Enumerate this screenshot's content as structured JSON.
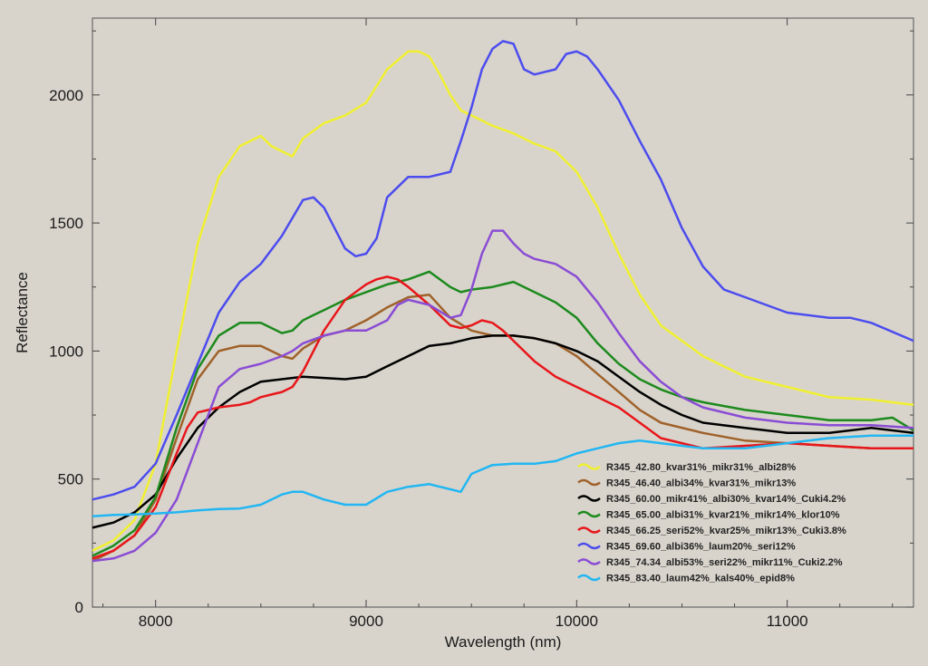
{
  "chart_data": {
    "type": "line",
    "title": "",
    "xlabel": "Wavelength (nm)",
    "ylabel": "Reflectance",
    "xlim": [
      7700,
      11600
    ],
    "ylim": [
      0,
      2300
    ],
    "xticks": [
      8000,
      9000,
      10000,
      11000
    ],
    "xtick_labels": [
      "8000",
      "9000",
      "10000",
      "11000"
    ],
    "yticks": [
      0,
      500,
      1000,
      1500,
      2000
    ],
    "ytick_labels": [
      "0",
      "500",
      "1000",
      "1500",
      "2000"
    ],
    "grid": false,
    "legend_position": "bottom-right",
    "background": "#d8d4cc",
    "series": [
      {
        "name": "R345_42.80_kvar31%_mikr31%_albi28%",
        "color": "#f0f030",
        "x": [
          7700,
          7800,
          7900,
          8000,
          8100,
          8200,
          8300,
          8400,
          8500,
          8550,
          8600,
          8650,
          8700,
          8800,
          8900,
          9000,
          9100,
          9200,
          9250,
          9300,
          9350,
          9400,
          9450,
          9500,
          9600,
          9700,
          9800,
          9900,
          10000,
          10100,
          10200,
          10300,
          10400,
          10600,
          10800,
          11000,
          11200,
          11400,
          11600
        ],
        "y": [
          220,
          260,
          340,
          560,
          1000,
          1420,
          1680,
          1800,
          1840,
          1800,
          1780,
          1760,
          1830,
          1890,
          1920,
          1970,
          2100,
          2170,
          2170,
          2150,
          2080,
          2000,
          1940,
          1920,
          1880,
          1850,
          1810,
          1780,
          1700,
          1560,
          1380,
          1220,
          1100,
          980,
          900,
          860,
          820,
          810,
          790
        ]
      },
      {
        "name": "R345_46.40_albi34%_kvar31%_mikr13%",
        "color": "#a0622a",
        "x": [
          7700,
          7800,
          7900,
          8000,
          8100,
          8200,
          8300,
          8400,
          8500,
          8600,
          8650,
          8700,
          8800,
          8900,
          9000,
          9100,
          9200,
          9300,
          9400,
          9500,
          9600,
          9700,
          9800,
          9900,
          10000,
          10100,
          10200,
          10300,
          10400,
          10600,
          10800,
          11000,
          11200,
          11400,
          11600
        ],
        "y": [
          180,
          220,
          280,
          420,
          660,
          890,
          1000,
          1020,
          1020,
          980,
          970,
          1010,
          1060,
          1080,
          1120,
          1170,
          1210,
          1220,
          1130,
          1080,
          1060,
          1060,
          1050,
          1030,
          980,
          910,
          840,
          770,
          720,
          680,
          650,
          640,
          630,
          620,
          620
        ]
      },
      {
        "name": "R345_60.00_mikr41%_albi30%_kvar14%_Cuki4.2%",
        "color": "#000000",
        "x": [
          7700,
          7800,
          7900,
          8000,
          8100,
          8200,
          8300,
          8400,
          8500,
          8600,
          8700,
          8800,
          8900,
          9000,
          9100,
          9200,
          9300,
          9400,
          9500,
          9600,
          9700,
          9800,
          9900,
          10000,
          10100,
          10200,
          10300,
          10400,
          10500,
          10600,
          10800,
          11000,
          11200,
          11400,
          11600
        ],
        "y": [
          310,
          330,
          370,
          440,
          580,
          700,
          780,
          840,
          880,
          890,
          900,
          895,
          890,
          900,
          940,
          980,
          1020,
          1030,
          1050,
          1060,
          1060,
          1050,
          1030,
          1000,
          960,
          900,
          840,
          790,
          750,
          720,
          700,
          680,
          680,
          700,
          680
        ]
      },
      {
        "name": "R345_65.00_albi31%_kvar21%_mikr14%_klor10%",
        "color": "#1d8a1d",
        "x": [
          7700,
          7800,
          7900,
          8000,
          8100,
          8200,
          8300,
          8400,
          8500,
          8600,
          8650,
          8700,
          8750,
          8800,
          8900,
          9000,
          9100,
          9200,
          9300,
          9350,
          9400,
          9450,
          9500,
          9600,
          9650,
          9700,
          9750,
          9800,
          9900,
          10000,
          10100,
          10200,
          10300,
          10400,
          10500,
          10600,
          10800,
          11000,
          11200,
          11400,
          11500,
          11600
        ],
        "y": [
          200,
          240,
          300,
          430,
          700,
          930,
          1060,
          1110,
          1110,
          1070,
          1080,
          1120,
          1140,
          1160,
          1200,
          1230,
          1260,
          1280,
          1310,
          1280,
          1250,
          1230,
          1240,
          1250,
          1260,
          1270,
          1250,
          1230,
          1190,
          1130,
          1030,
          950,
          890,
          850,
          820,
          800,
          770,
          750,
          730,
          730,
          740,
          690
        ]
      },
      {
        "name": "R345_66.25_seri52%_kvar25%_mikr13%_Cuki3.8%",
        "color": "#e8161a",
        "x": [
          7700,
          7800,
          7900,
          8000,
          8100,
          8150,
          8200,
          8300,
          8400,
          8450,
          8500,
          8550,
          8600,
          8650,
          8700,
          8800,
          8900,
          9000,
          9050,
          9100,
          9150,
          9200,
          9300,
          9400,
          9450,
          9500,
          9550,
          9600,
          9650,
          9700,
          9800,
          9900,
          10000,
          10100,
          10200,
          10300,
          10400,
          10600,
          10800,
          11000,
          11200,
          11400,
          11600
        ],
        "y": [
          190,
          220,
          280,
          390,
          600,
          700,
          760,
          780,
          790,
          800,
          820,
          830,
          840,
          860,
          920,
          1080,
          1200,
          1260,
          1280,
          1290,
          1280,
          1250,
          1180,
          1100,
          1090,
          1100,
          1120,
          1110,
          1080,
          1040,
          960,
          900,
          860,
          820,
          780,
          720,
          660,
          620,
          630,
          640,
          630,
          620,
          620
        ]
      },
      {
        "name": "R345_69.60_albi36%_laum20%_seri12%",
        "color": "#4c4cee",
        "x": [
          7700,
          7800,
          7900,
          8000,
          8100,
          8200,
          8300,
          8400,
          8500,
          8600,
          8700,
          8750,
          8800,
          8900,
          8950,
          9000,
          9050,
          9100,
          9200,
          9300,
          9400,
          9450,
          9500,
          9550,
          9600,
          9650,
          9700,
          9750,
          9800,
          9900,
          9950,
          10000,
          10050,
          10100,
          10200,
          10300,
          10400,
          10500,
          10600,
          10700,
          10800,
          10900,
          11000,
          11200,
          11300,
          11400,
          11600
        ],
        "y": [
          420,
          440,
          470,
          560,
          750,
          950,
          1150,
          1270,
          1340,
          1450,
          1590,
          1600,
          1560,
          1400,
          1370,
          1380,
          1440,
          1600,
          1680,
          1680,
          1700,
          1820,
          1950,
          2100,
          2180,
          2210,
          2200,
          2100,
          2080,
          2100,
          2160,
          2170,
          2150,
          2100,
          1980,
          1820,
          1670,
          1480,
          1330,
          1240,
          1210,
          1180,
          1150,
          1130,
          1130,
          1110,
          1040
        ]
      },
      {
        "name": "R345_74.34_albi53%_seri22%_mikr11%_Cuki2.2%",
        "color": "#8a4cd4",
        "x": [
          7700,
          7800,
          7900,
          8000,
          8100,
          8200,
          8300,
          8400,
          8500,
          8600,
          8650,
          8700,
          8800,
          8900,
          9000,
          9100,
          9150,
          9200,
          9300,
          9400,
          9450,
          9500,
          9550,
          9600,
          9650,
          9700,
          9750,
          9800,
          9900,
          10000,
          10100,
          10200,
          10300,
          10400,
          10500,
          10600,
          10800,
          11000,
          11200,
          11400,
          11600
        ],
        "y": [
          180,
          190,
          220,
          290,
          420,
          640,
          860,
          930,
          950,
          980,
          1000,
          1030,
          1060,
          1080,
          1080,
          1120,
          1180,
          1200,
          1180,
          1130,
          1140,
          1240,
          1380,
          1470,
          1470,
          1420,
          1380,
          1360,
          1340,
          1290,
          1190,
          1070,
          960,
          880,
          820,
          780,
          740,
          720,
          710,
          710,
          700
        ]
      },
      {
        "name": "R345_83.40_laum42%_kals40%_epid8%",
        "color": "#22b6f2",
        "x": [
          7700,
          7800,
          7900,
          8000,
          8100,
          8200,
          8300,
          8400,
          8500,
          8600,
          8650,
          8700,
          8800,
          8900,
          9000,
          9100,
          9200,
          9300,
          9400,
          9450,
          9500,
          9600,
          9700,
          9800,
          9900,
          10000,
          10100,
          10200,
          10300,
          10400,
          10600,
          10800,
          11000,
          11200,
          11400,
          11600
        ],
        "y": [
          355,
          360,
          362,
          365,
          370,
          378,
          383,
          385,
          400,
          440,
          450,
          450,
          420,
          400,
          400,
          450,
          470,
          480,
          460,
          450,
          520,
          555,
          560,
          560,
          570,
          600,
          620,
          640,
          650,
          640,
          620,
          620,
          640,
          660,
          670,
          670
        ]
      }
    ]
  }
}
